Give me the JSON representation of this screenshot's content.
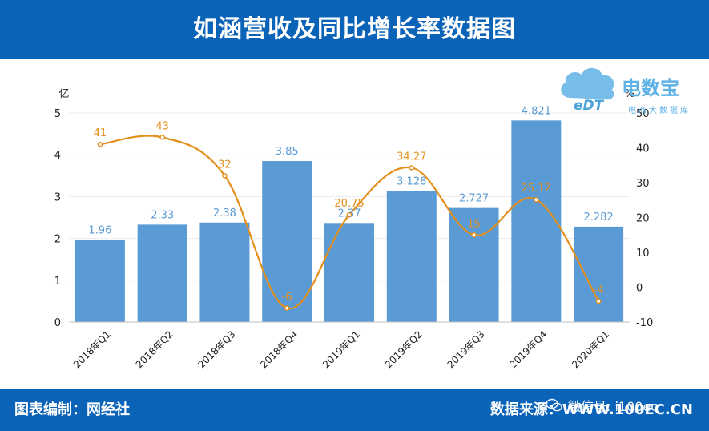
{
  "header": {
    "title": "如涵营收及同比增长率数据图"
  },
  "footer": {
    "left": "图表编制：网经社",
    "right": "数据来源：WWW.100EC.CN",
    "wechat": "微信号: i100ec"
  },
  "logo": {
    "main": "电数宝",
    "sub": "电商大数据库",
    "mark": "eDT"
  },
  "colors": {
    "bar": "#5b9bd5",
    "line": "#e48f1b",
    "header": "#0b63b8"
  },
  "chart_data": {
    "type": "bar",
    "categories": [
      "2018年Q1",
      "2018年Q2",
      "2018年Q3",
      "2018年Q4",
      "2019年Q1",
      "2019年Q2",
      "2019年Q3",
      "2019年Q4",
      "2020年Q1"
    ],
    "series": [
      {
        "values": [
          1.96,
          2.33,
          2.38,
          3.85,
          2.37,
          3.128,
          2.727,
          4.821,
          2.282
        ],
        "labels": [
          "1.96",
          "2.33",
          "2.38",
          "3.85",
          "2.37",
          "3.128",
          "2.727",
          "4.821",
          "2.282"
        ],
        "axis": "left",
        "style": "bar"
      },
      {
        "values": [
          41,
          43,
          32,
          -6,
          20.75,
          34.27,
          15,
          25.12,
          -4
        ],
        "labels": [
          "41",
          "43",
          "32",
          "-6",
          "20.75",
          "34.27",
          "15",
          "25.12",
          "-4"
        ],
        "axis": "right",
        "style": "line"
      }
    ],
    "ylabel": "亿",
    "y2label": "%",
    "ylim": [
      0,
      5
    ],
    "y2lim": [
      -10,
      50
    ],
    "yticks": [
      "0",
      "1",
      "2",
      "3",
      "4",
      "5"
    ],
    "y2ticks": [
      "-10",
      "0",
      "10",
      "20",
      "30",
      "40",
      "50"
    ],
    "grid": true
  }
}
